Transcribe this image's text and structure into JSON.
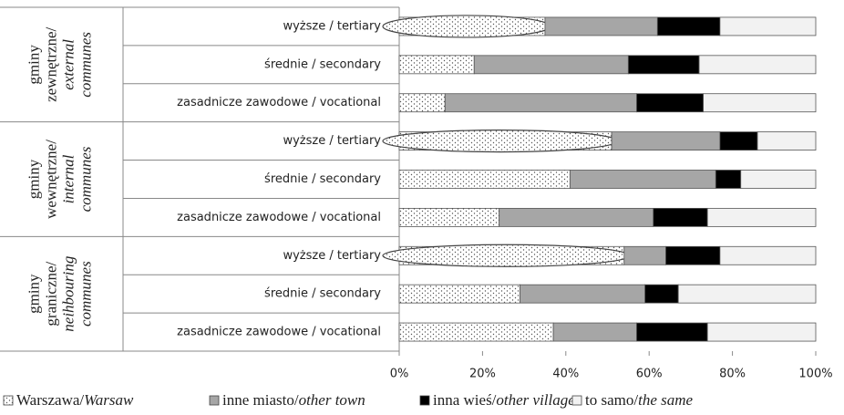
{
  "chart_data": {
    "type": "stacked_barh",
    "groups": [
      {
        "lines_pl": [
          "gminy",
          "zewnętrzne/"
        ],
        "lines_en": [
          "external",
          "communes"
        ],
        "categories": [
          "wyższe / tertiary",
          "średnie / secondary",
          "zasadnicze zawodowe / vocational"
        ]
      },
      {
        "lines_pl": [
          "gminy",
          "wewnętrzne/"
        ],
        "lines_en": [
          "internal",
          "communes"
        ],
        "categories": [
          "wyższe / tertiary",
          "średnie / secondary",
          "zasadnicze zawodowe / vocational"
        ]
      },
      {
        "lines_pl": [
          "gminy",
          "graniczne/"
        ],
        "lines_en": [
          "neihbouring",
          "communes"
        ],
        "categories": [
          "wyższe / tertiary",
          "średnie / secondary",
          "zasadnicze zawodowe / vocational"
        ]
      }
    ],
    "series": [
      {
        "label_pl": "Warszawa/",
        "label_en": "Warsaw",
        "color": "dotted",
        "values": [
          35,
          18,
          11,
          51,
          41,
          24,
          54,
          29,
          37
        ]
      },
      {
        "label_pl": "inne miasto/",
        "label_en": "other town",
        "color": "#a6a6a6",
        "values": [
          27,
          37,
          46,
          26,
          35,
          37,
          10,
          30,
          20
        ]
      },
      {
        "label_pl": "inna wieś/",
        "label_en": "other village",
        "color": "#000000",
        "values": [
          15,
          17,
          16,
          9,
          6,
          13,
          13,
          8,
          17
        ]
      },
      {
        "label_pl": "to samo/",
        "label_en": "the same",
        "color": "#f2f2f2",
        "values": [
          23,
          28,
          27,
          14,
          18,
          26,
          23,
          33,
          26
        ]
      }
    ],
    "xlim": [
      0,
      100
    ],
    "xticks": [
      {
        "value": 0,
        "label": "0%"
      },
      {
        "value": 20,
        "label": "20%"
      },
      {
        "value": 40,
        "label": "40%"
      },
      {
        "value": 60,
        "label": "60%"
      },
      {
        "value": 80,
        "label": "80%"
      },
      {
        "value": 100,
        "label": "100%"
      }
    ]
  }
}
